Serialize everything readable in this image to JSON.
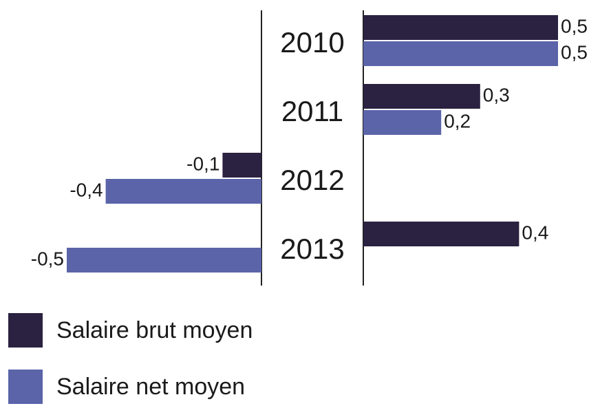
{
  "chart_data": {
    "type": "bar",
    "orientation": "horizontal",
    "categories": [
      "2010",
      "2011",
      "2012",
      "2013"
    ],
    "series": [
      {
        "name": "Salaire brut moyen",
        "color": "#2b2140",
        "values": [
          0.5,
          0.3,
          -0.1,
          0.4
        ],
        "value_labels": [
          "0,5",
          "0,3",
          "-0,1",
          "0,4"
        ]
      },
      {
        "name": "Salaire net moyen",
        "color": "#5b64a9",
        "values": [
          0.5,
          0.2,
          -0.4,
          -0.5
        ],
        "value_labels": [
          "0,5",
          "0,2",
          "-0,4",
          "-0,5"
        ]
      }
    ]
  }
}
